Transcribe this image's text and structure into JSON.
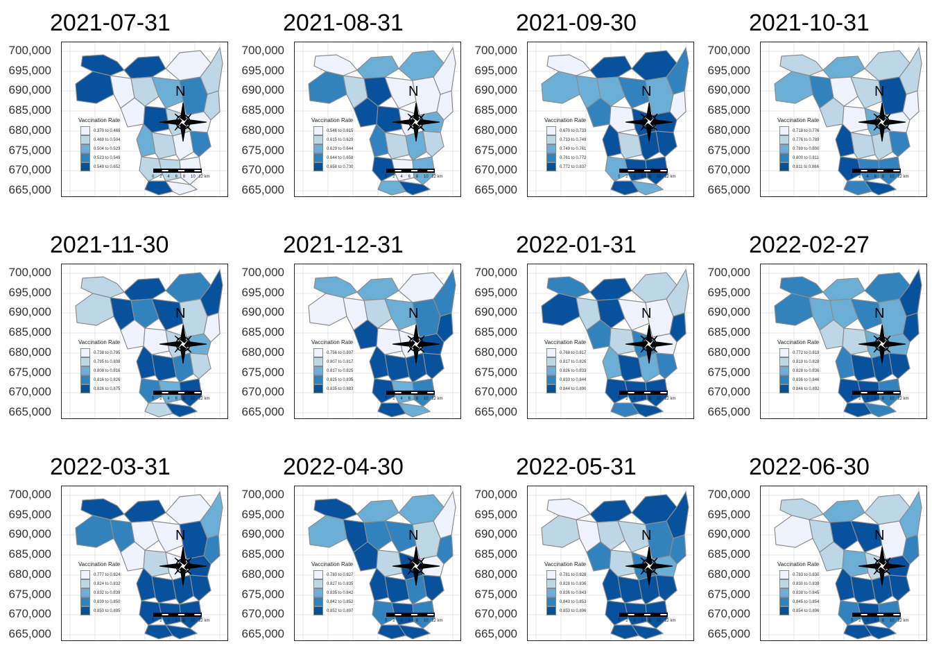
{
  "map": {
    "north_label": "N",
    "y_ticks": [
      "700,000",
      "695,000",
      "690,000",
      "685,000",
      "680,000",
      "675,000",
      "670,000",
      "665,000"
    ],
    "legend_title": "Vaccination Rate",
    "scalebar_labels": [
      "0",
      "2",
      "4",
      "6",
      "8",
      "10",
      "12 km"
    ],
    "palette": [
      "#eff3ff",
      "#bdd7e7",
      "#6baed6",
      "#3182bd",
      "#08519c"
    ]
  },
  "panels": [
    {
      "title": "2021-07-31",
      "legend": [
        "0.370 to 0.469",
        "0.469 to 0.504",
        "0.504 to 0.523",
        "0.523 to 0.549",
        "0.549 to 0.652"
      ]
    },
    {
      "title": "2021-08-31",
      "legend": [
        "0.546 to 0.615",
        "0.615 to 0.629",
        "0.629 to 0.644",
        "0.644 to 0.658",
        "0.658 to 0.730"
      ]
    },
    {
      "title": "2021-09-30",
      "legend": [
        "0.670 to 0.733",
        "0.733 to 0.749",
        "0.749 to 0.761",
        "0.761 to 0.772",
        "0.772 to 0.837"
      ]
    },
    {
      "title": "2021-10-31",
      "legend": [
        "0.718 to 0.776",
        "0.776 to 0.789",
        "0.789 to 0.800",
        "0.800 to 0.811",
        "0.811 to 0.866"
      ]
    },
    {
      "title": "2021-11-30",
      "legend": [
        "0.738 to 0.795",
        "0.795 to 0.808",
        "0.808 to 0.816",
        "0.816 to 0.826",
        "0.826 to 0.875"
      ]
    },
    {
      "title": "2021-12-31",
      "legend": [
        "0.756 to 0.807",
        "0.807 to 0.817",
        "0.817 to 0.825",
        "0.825 to 0.835",
        "0.835 to 0.883"
      ]
    },
    {
      "title": "2022-01-31",
      "legend": [
        "0.768 to 0.817",
        "0.817 to 0.826",
        "0.826 to 0.833",
        "0.833 to 0.844",
        "0.844 to 0.890"
      ]
    },
    {
      "title": "2022-02-27",
      "legend": [
        "0.772 to 0.819",
        "0.819 to 0.828",
        "0.828 to 0.836",
        "0.836 to 0.846",
        "0.846 to 0.892"
      ]
    },
    {
      "title": "2022-03-31",
      "legend": [
        "0.777 to 0.824",
        "0.824 to 0.832",
        "0.832 to 0.839",
        "0.839 to 0.850",
        "0.850 to 0.895"
      ]
    },
    {
      "title": "2022-04-30",
      "legend": [
        "0.780 to 0.827",
        "0.827 to 0.835",
        "0.835 to 0.842",
        "0.842 to 0.852",
        "0.852 to 0.897"
      ]
    },
    {
      "title": "2022-05-31",
      "legend": [
        "0.781 to 0.828",
        "0.828 to 0.836",
        "0.836 to 0.843",
        "0.843 to 0.853",
        "0.853 to 0.896"
      ]
    },
    {
      "title": "2022-06-30",
      "legend": [
        "0.783 to 0.830",
        "0.830 to 0.838",
        "0.838 to 0.845",
        "0.845 to 0.854",
        "0.854 to 0.896"
      ]
    }
  ]
}
